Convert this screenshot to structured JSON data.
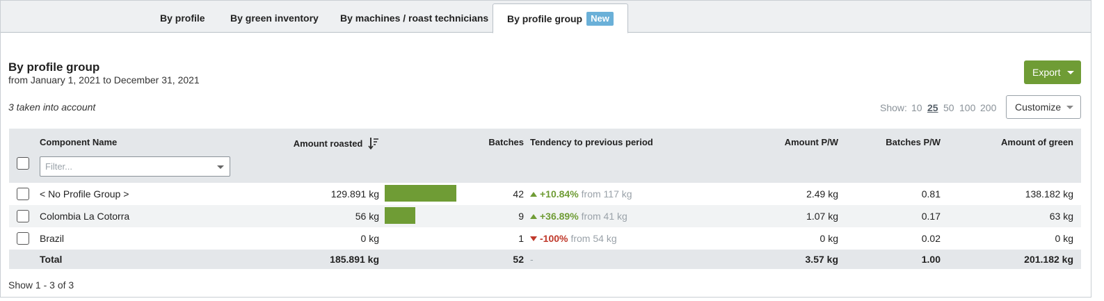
{
  "tabs": [
    {
      "label": "By profile"
    },
    {
      "label": "By green inventory"
    },
    {
      "label": "By machines / roast technicians"
    },
    {
      "label": "By profile group",
      "badge": "New",
      "active": true
    }
  ],
  "header": {
    "title": "By profile group",
    "subtitle": "from January 1, 2021 to December 31, 2021",
    "taken_info": "3 taken into account"
  },
  "toolbar": {
    "export_label": "Export",
    "show_label": "Show:",
    "show_options": [
      "10",
      "25",
      "50",
      "100",
      "200"
    ],
    "show_selected": "25",
    "customize_label": "Customize"
  },
  "table": {
    "columns": {
      "name": "Component Name",
      "amount_roasted": "Amount roasted",
      "batches": "Batches",
      "tendency": "Tendency to previous period",
      "amount_pw": "Amount P/W",
      "batches_pw": "Batches P/W",
      "amount_green": "Amount of green"
    },
    "filter_placeholder": "Filter...",
    "rows": [
      {
        "name": "< No Profile Group >",
        "amount_roasted": "129.891 kg",
        "bar_fraction": 0.699,
        "batches": "42",
        "trend": "up",
        "pct": "+10.84%",
        "from": "from 117 kg",
        "amount_pw": "2.49 kg",
        "batches_pw": "0.81",
        "amount_green": "138.182 kg"
      },
      {
        "name": "Colombia La Cotorra",
        "amount_roasted": "56 kg",
        "bar_fraction": 0.301,
        "batches": "9",
        "trend": "up",
        "pct": "+36.89%",
        "from": "from 41 kg",
        "amount_pw": "1.07 kg",
        "batches_pw": "0.17",
        "amount_green": "63 kg"
      },
      {
        "name": "Brazil",
        "amount_roasted": "0 kg",
        "bar_fraction": 0,
        "batches": "1",
        "trend": "down",
        "pct": "-100%",
        "from": "from 54 kg",
        "amount_pw": "0 kg",
        "batches_pw": "0.02",
        "amount_green": "0 kg"
      }
    ],
    "total": {
      "label": "Total",
      "amount_roasted": "185.891 kg",
      "batches": "52",
      "tendency": "-",
      "amount_pw": "3.57 kg",
      "batches_pw": "1.00",
      "amount_green": "201.182 kg"
    }
  },
  "footer": {
    "show_count": "Show 1 - 3 of 3"
  },
  "colors": {
    "accent_green": "#6f9c35",
    "down_red": "#c0392b",
    "badge_blue": "#6ab0d8"
  }
}
